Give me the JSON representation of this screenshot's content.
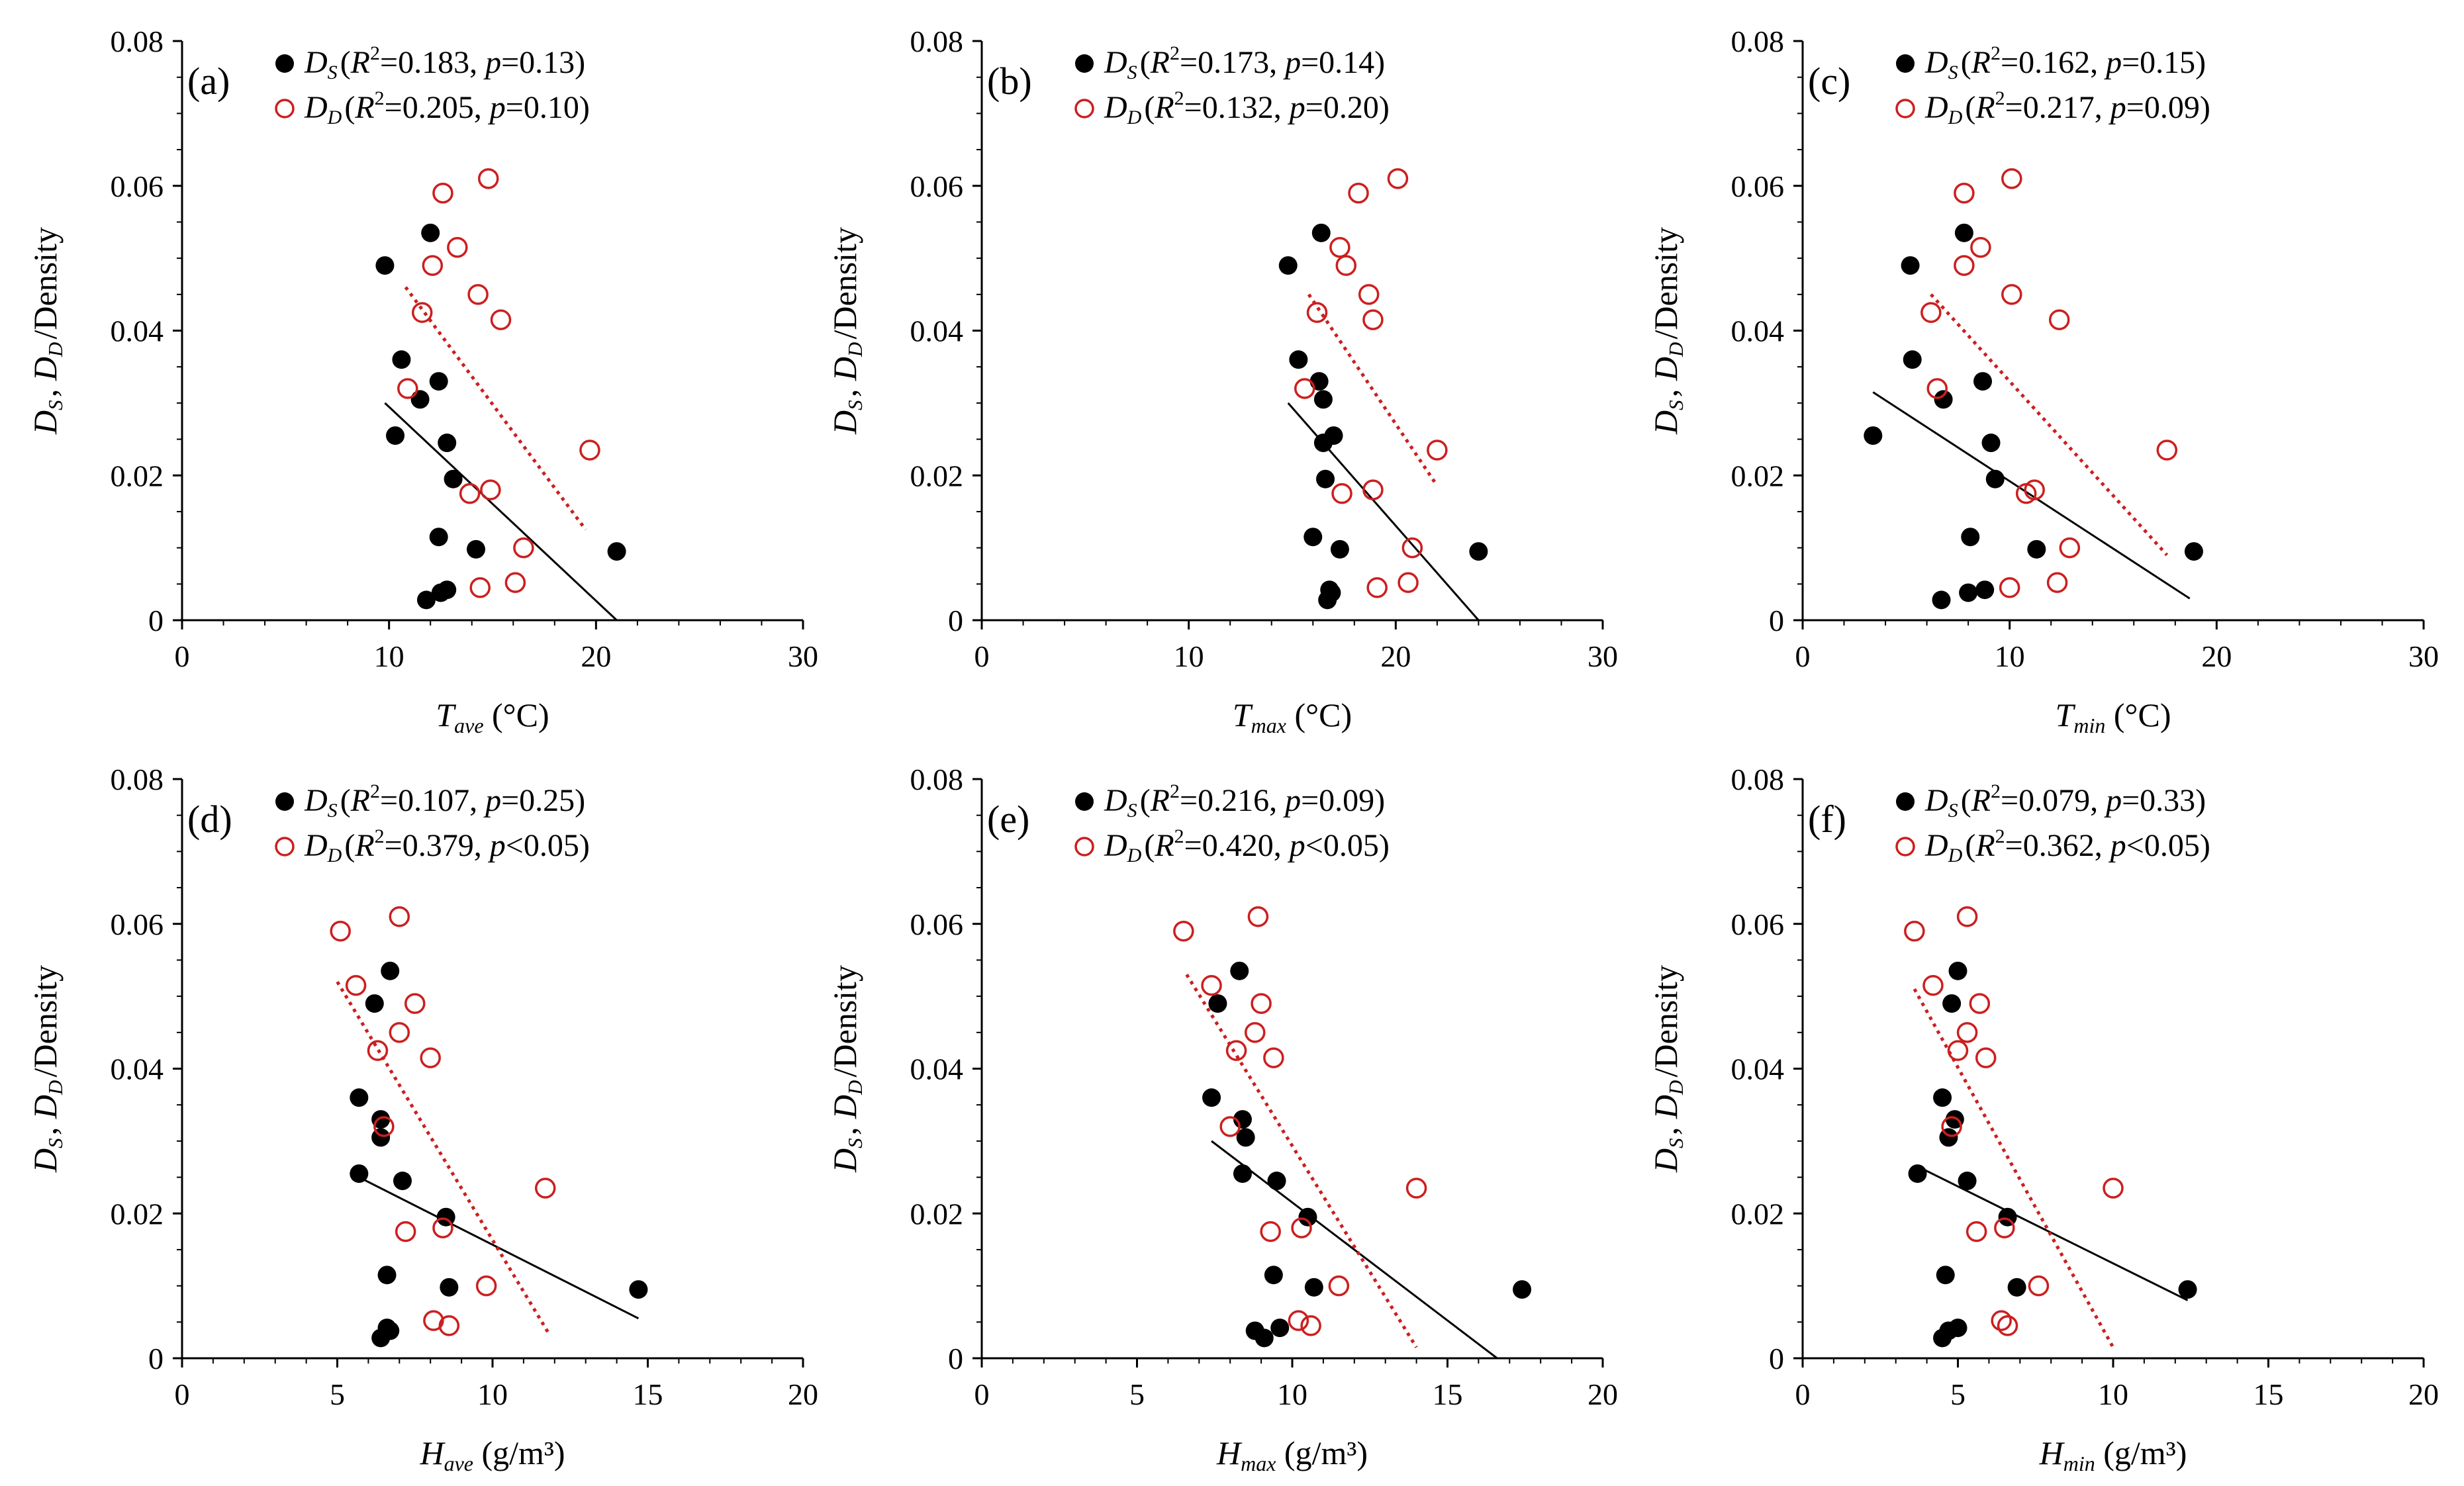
{
  "colors": {
    "DS": "#000000",
    "DD": "#cc1f1f",
    "axis": "#000000"
  },
  "series_labels": {
    "DS": "D_S",
    "DD": "D_D"
  },
  "chart_data": [
    {
      "type": "scatter",
      "panel": "(a)",
      "xlabel": {
        "symbol": "T",
        "sub": "ave",
        "unit": "(°C)"
      },
      "ylabel": "D_S, D_D/Density",
      "xlim": [
        0,
        30
      ],
      "ylim": [
        0,
        0.08
      ],
      "xticks": [
        0,
        10,
        20,
        30
      ],
      "yticks": [
        0,
        0.02,
        0.04,
        0.06,
        0.08
      ],
      "xtick_labels": [
        "0",
        "10",
        "20",
        "30"
      ],
      "ytick_labels": [
        "0",
        "0.02",
        "0.04",
        "0.06",
        "0.08"
      ],
      "legend": [
        {
          "series": "DS",
          "r2": "0.183",
          "p": "=0.13"
        },
        {
          "series": "DD",
          "r2": "0.205",
          "p": "=0.10"
        }
      ],
      "DS": [
        [
          9.8,
          0.049
        ],
        [
          12.0,
          0.0535
        ],
        [
          10.6,
          0.036
        ],
        [
          11.5,
          0.0305
        ],
        [
          12.4,
          0.033
        ],
        [
          10.3,
          0.0255
        ],
        [
          12.8,
          0.0245
        ],
        [
          13.1,
          0.0195
        ],
        [
          12.4,
          0.0115
        ],
        [
          14.2,
          0.0098
        ],
        [
          21.0,
          0.0095
        ],
        [
          11.8,
          0.0028
        ],
        [
          12.5,
          0.0038
        ],
        [
          12.8,
          0.0042
        ]
      ],
      "DD": [
        [
          12.6,
          0.059
        ],
        [
          14.8,
          0.061
        ],
        [
          13.3,
          0.0515
        ],
        [
          12.1,
          0.049
        ],
        [
          14.3,
          0.045
        ],
        [
          11.6,
          0.0425
        ],
        [
          15.4,
          0.0415
        ],
        [
          10.9,
          0.032
        ],
        [
          19.7,
          0.0235
        ],
        [
          13.9,
          0.0175
        ],
        [
          14.9,
          0.018
        ],
        [
          16.5,
          0.01
        ],
        [
          16.1,
          0.0052
        ],
        [
          14.4,
          0.0045
        ]
      ],
      "DS_fit": [
        [
          9.8,
          0.03
        ],
        [
          21.0,
          0.0
        ]
      ],
      "DD_fit": [
        [
          10.8,
          0.046
        ],
        [
          19.5,
          0.0125
        ]
      ]
    },
    {
      "type": "scatter",
      "panel": "(b)",
      "xlabel": {
        "symbol": "T",
        "sub": "max",
        "unit": "(°C)"
      },
      "ylabel": "D_S, D_D/Density",
      "xlim": [
        0,
        30
      ],
      "ylim": [
        0,
        0.08
      ],
      "xticks": [
        0,
        10,
        20,
        30
      ],
      "yticks": [
        0,
        0.02,
        0.04,
        0.06,
        0.08
      ],
      "xtick_labels": [
        "0",
        "10",
        "20",
        "30"
      ],
      "ytick_labels": [
        "0",
        "0.02",
        "0.04",
        "0.06",
        "0.08"
      ],
      "legend": [
        {
          "series": "DS",
          "r2": "0.173",
          "p": "=0.14"
        },
        {
          "series": "DD",
          "r2": "0.132",
          "p": "=0.20"
        }
      ],
      "DS": [
        [
          14.8,
          0.049
        ],
        [
          16.4,
          0.0535
        ],
        [
          15.3,
          0.036
        ],
        [
          16.3,
          0.033
        ],
        [
          16.5,
          0.0305
        ],
        [
          17.0,
          0.0255
        ],
        [
          16.5,
          0.0245
        ],
        [
          16.6,
          0.0195
        ],
        [
          16.0,
          0.0115
        ],
        [
          17.3,
          0.0098
        ],
        [
          24.0,
          0.0095
        ],
        [
          16.7,
          0.0028
        ],
        [
          16.9,
          0.0038
        ],
        [
          16.8,
          0.0042
        ]
      ],
      "DD": [
        [
          18.2,
          0.059
        ],
        [
          20.1,
          0.061
        ],
        [
          17.3,
          0.0515
        ],
        [
          17.6,
          0.049
        ],
        [
          18.7,
          0.045
        ],
        [
          16.2,
          0.0425
        ],
        [
          18.9,
          0.0415
        ],
        [
          15.6,
          0.032
        ],
        [
          22.0,
          0.0235
        ],
        [
          17.4,
          0.0175
        ],
        [
          18.9,
          0.018
        ],
        [
          20.8,
          0.01
        ],
        [
          20.6,
          0.0052
        ],
        [
          19.1,
          0.0045
        ]
      ],
      "DS_fit": [
        [
          14.8,
          0.03
        ],
        [
          24.0,
          0.0
        ]
      ],
      "DD_fit": [
        [
          15.8,
          0.045
        ],
        [
          21.9,
          0.019
        ]
      ]
    },
    {
      "type": "scatter",
      "panel": "(c)",
      "xlabel": {
        "symbol": "T",
        "sub": "min",
        "unit": "(°C)"
      },
      "ylabel": "D_S, D_D/Density",
      "xlim": [
        0,
        30
      ],
      "ylim": [
        0,
        0.08
      ],
      "xticks": [
        0,
        10,
        20,
        30
      ],
      "yticks": [
        0,
        0.02,
        0.04,
        0.06,
        0.08
      ],
      "xtick_labels": [
        "0",
        "10",
        "20",
        "30"
      ],
      "ytick_labels": [
        "0",
        "0.02",
        "0.04",
        "0.06",
        "0.08"
      ],
      "legend": [
        {
          "series": "DS",
          "r2": "0.162",
          "p": "=0.15"
        },
        {
          "series": "DD",
          "r2": "0.217",
          "p": "=0.09"
        }
      ],
      "DS": [
        [
          5.2,
          0.049
        ],
        [
          7.8,
          0.0535
        ],
        [
          5.3,
          0.036
        ],
        [
          8.7,
          0.033
        ],
        [
          6.8,
          0.0305
        ],
        [
          3.4,
          0.0255
        ],
        [
          9.1,
          0.0245
        ],
        [
          9.3,
          0.0195
        ],
        [
          8.1,
          0.0115
        ],
        [
          11.3,
          0.0098
        ],
        [
          18.9,
          0.0095
        ],
        [
          6.7,
          0.0028
        ],
        [
          8.0,
          0.0038
        ],
        [
          8.8,
          0.0042
        ]
      ],
      "DD": [
        [
          7.8,
          0.059
        ],
        [
          10.1,
          0.061
        ],
        [
          8.6,
          0.0515
        ],
        [
          7.8,
          0.049
        ],
        [
          10.1,
          0.045
        ],
        [
          6.2,
          0.0425
        ],
        [
          12.4,
          0.0415
        ],
        [
          6.5,
          0.032
        ],
        [
          17.6,
          0.0235
        ],
        [
          10.8,
          0.0175
        ],
        [
          11.2,
          0.018
        ],
        [
          12.9,
          0.01
        ],
        [
          12.3,
          0.0052
        ],
        [
          10.0,
          0.0045
        ]
      ],
      "DS_fit": [
        [
          3.4,
          0.0315
        ],
        [
          18.7,
          0.003
        ]
      ],
      "DD_fit": [
        [
          6.2,
          0.045
        ],
        [
          17.6,
          0.009
        ]
      ]
    },
    {
      "type": "scatter",
      "panel": "(d)",
      "xlabel": {
        "symbol": "H",
        "sub": "ave",
        "unit": "(g/m³)"
      },
      "ylabel": "D_S, D_D/Density",
      "xlim": [
        0,
        20
      ],
      "ylim": [
        0,
        0.08
      ],
      "xticks": [
        0,
        5,
        10,
        15,
        20
      ],
      "yticks": [
        0,
        0.02,
        0.04,
        0.06,
        0.08
      ],
      "xtick_labels": [
        "0",
        "5",
        "10",
        "15",
        "20"
      ],
      "ytick_labels": [
        "0",
        "0.02",
        "0.04",
        "0.06",
        "0.08"
      ],
      "legend": [
        {
          "series": "DS",
          "r2": "0.107",
          "p": "=0.25"
        },
        {
          "series": "DD",
          "r2": "0.379",
          "p": "<0.05"
        }
      ],
      "DS": [
        [
          6.2,
          0.049
        ],
        [
          6.7,
          0.0535
        ],
        [
          5.7,
          0.036
        ],
        [
          6.4,
          0.033
        ],
        [
          6.4,
          0.0305
        ],
        [
          5.7,
          0.0255
        ],
        [
          7.1,
          0.0245
        ],
        [
          8.5,
          0.0195
        ],
        [
          6.6,
          0.0115
        ],
        [
          8.6,
          0.0098
        ],
        [
          14.7,
          0.0095
        ],
        [
          6.4,
          0.0028
        ],
        [
          6.7,
          0.0038
        ],
        [
          6.6,
          0.0042
        ]
      ],
      "DD": [
        [
          5.1,
          0.059
        ],
        [
          7.0,
          0.061
        ],
        [
          7.5,
          0.049
        ],
        [
          5.6,
          0.0515
        ],
        [
          7.0,
          0.045
        ],
        [
          6.3,
          0.0425
        ],
        [
          8.0,
          0.0415
        ],
        [
          6.5,
          0.032
        ],
        [
          11.7,
          0.0235
        ],
        [
          7.2,
          0.0175
        ],
        [
          8.4,
          0.018
        ],
        [
          9.8,
          0.01
        ],
        [
          8.1,
          0.0052
        ],
        [
          8.6,
          0.0045
        ]
      ],
      "DS_fit": [
        [
          5.7,
          0.025
        ],
        [
          14.7,
          0.0055
        ]
      ],
      "DD_fit": [
        [
          5.0,
          0.052
        ],
        [
          11.8,
          0.0035
        ]
      ]
    },
    {
      "type": "scatter",
      "panel": "(e)",
      "xlabel": {
        "symbol": "H",
        "sub": "max",
        "unit": "(g/m³)"
      },
      "ylabel": "D_S, D_D/Density",
      "xlim": [
        0,
        20
      ],
      "ylim": [
        0,
        0.08
      ],
      "xticks": [
        0,
        5,
        10,
        15,
        20
      ],
      "yticks": [
        0,
        0.02,
        0.04,
        0.06,
        0.08
      ],
      "xtick_labels": [
        "0",
        "5",
        "10",
        "15",
        "20"
      ],
      "ytick_labels": [
        "0",
        "0.02",
        "0.04",
        "0.06",
        "0.08"
      ],
      "legend": [
        {
          "series": "DS",
          "r2": "0.216",
          "p": "=0.09"
        },
        {
          "series": "DD",
          "r2": "0.420",
          "p": "<0.05"
        }
      ],
      "DS": [
        [
          7.6,
          0.049
        ],
        [
          8.3,
          0.0535
        ],
        [
          7.4,
          0.036
        ],
        [
          8.4,
          0.033
        ],
        [
          8.5,
          0.0305
        ],
        [
          8.4,
          0.0255
        ],
        [
          9.5,
          0.0245
        ],
        [
          10.5,
          0.0195
        ],
        [
          9.4,
          0.0115
        ],
        [
          10.7,
          0.0098
        ],
        [
          17.4,
          0.0095
        ],
        [
          9.1,
          0.0028
        ],
        [
          8.8,
          0.0038
        ],
        [
          9.6,
          0.0042
        ]
      ],
      "DD": [
        [
          6.5,
          0.059
        ],
        [
          8.9,
          0.061
        ],
        [
          7.4,
          0.0515
        ],
        [
          9.0,
          0.049
        ],
        [
          8.8,
          0.045
        ],
        [
          8.2,
          0.0425
        ],
        [
          9.4,
          0.0415
        ],
        [
          8.0,
          0.032
        ],
        [
          14.0,
          0.0235
        ],
        [
          9.3,
          0.0175
        ],
        [
          10.3,
          0.018
        ],
        [
          11.5,
          0.01
        ],
        [
          10.2,
          0.0052
        ],
        [
          10.6,
          0.0045
        ]
      ],
      "DS_fit": [
        [
          7.4,
          0.03
        ],
        [
          16.6,
          0.0
        ]
      ],
      "DD_fit": [
        [
          6.6,
          0.053
        ],
        [
          14.0,
          0.0015
        ]
      ]
    },
    {
      "type": "scatter",
      "panel": "(f)",
      "xlabel": {
        "symbol": "H",
        "sub": "min",
        "unit": "(g/m³)"
      },
      "ylabel": "D_S, D_D/Density",
      "xlim": [
        0,
        20
      ],
      "ylim": [
        0,
        0.08
      ],
      "xticks": [
        0,
        5,
        10,
        15,
        20
      ],
      "yticks": [
        0,
        0.02,
        0.04,
        0.06,
        0.08
      ],
      "xtick_labels": [
        "0",
        "5",
        "10",
        "15",
        "20"
      ],
      "ytick_labels": [
        "0",
        "0.02",
        "0.04",
        "0.06",
        "0.08"
      ],
      "legend": [
        {
          "series": "DS",
          "r2": "0.079",
          "p": "=0.33"
        },
        {
          "series": "DD",
          "r2": "0.362",
          "p": "<0.05"
        }
      ],
      "DS": [
        [
          4.8,
          0.049
        ],
        [
          5.0,
          0.0535
        ],
        [
          4.5,
          0.036
        ],
        [
          4.9,
          0.033
        ],
        [
          4.7,
          0.0305
        ],
        [
          3.7,
          0.0255
        ],
        [
          5.3,
          0.0245
        ],
        [
          6.6,
          0.0195
        ],
        [
          4.6,
          0.0115
        ],
        [
          6.9,
          0.0098
        ],
        [
          12.4,
          0.0095
        ],
        [
          4.5,
          0.0028
        ],
        [
          4.7,
          0.0038
        ],
        [
          5.0,
          0.0042
        ]
      ],
      "DD": [
        [
          3.6,
          0.059
        ],
        [
          5.3,
          0.061
        ],
        [
          4.2,
          0.0515
        ],
        [
          5.7,
          0.049
        ],
        [
          5.3,
          0.045
        ],
        [
          5.0,
          0.0425
        ],
        [
          5.9,
          0.0415
        ],
        [
          4.8,
          0.032
        ],
        [
          10.0,
          0.0235
        ],
        [
          5.6,
          0.0175
        ],
        [
          6.5,
          0.018
        ],
        [
          7.6,
          0.01
        ],
        [
          6.4,
          0.0052
        ],
        [
          6.6,
          0.0045
        ]
      ],
      "DS_fit": [
        [
          3.7,
          0.0265
        ],
        [
          12.4,
          0.008
        ]
      ],
      "DD_fit": [
        [
          3.6,
          0.051
        ],
        [
          10.0,
          0.0015
        ]
      ]
    }
  ]
}
